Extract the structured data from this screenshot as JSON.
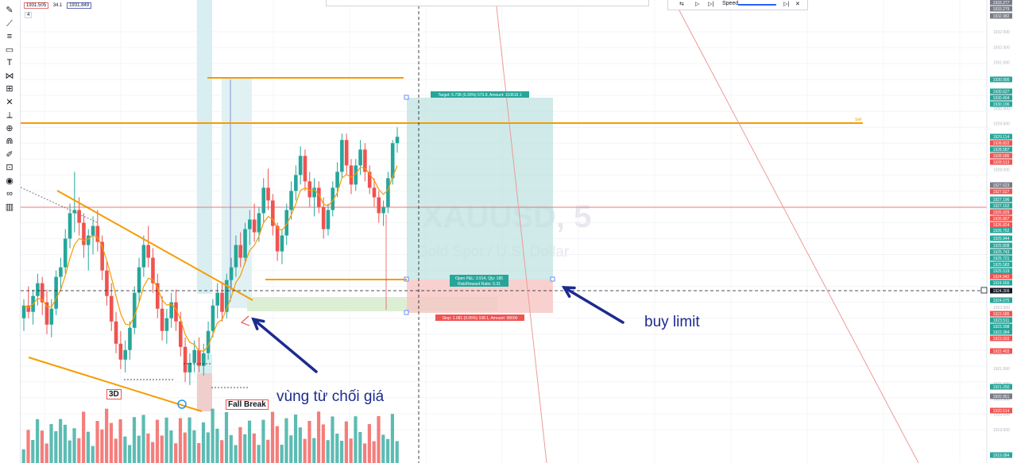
{
  "header": {
    "ohlc": [
      "1931.505",
      "34.1",
      "1931.849"
    ],
    "interval_badge": "4"
  },
  "replay": {
    "speed_label": "Speed"
  },
  "symbol": {
    "ticker": "XAUUSD, 5",
    "description": "Gold Spot / U.S. Dollar"
  },
  "position": {
    "target_label": "Target: 5.738 (0.30%) 573.8, Amount: 110616.1",
    "open_label": "Open P&L: 3.914, Qty: 185",
    "risk_label": "Risk/Reward Ratio: 5.31",
    "stop_label": "Stop: 1.081 (0.06%) 108.1, Amount: 98000"
  },
  "level_label": "Sell",
  "annotations": {
    "buy_limit": "buy limit",
    "rejection_zone": "vùng từ chối giá",
    "fall_break": "Fall Break",
    "three_d": "3D"
  },
  "colors": {
    "up": "#26a69a",
    "down": "#ef5350",
    "orange": "#f59c00",
    "arrow": "#1c2b8f",
    "target_zone": "#bfe3e0",
    "stop_zone": "#f6c5c3"
  },
  "price_axis": {
    "ticks": [
      "1932.500",
      "1932.000",
      "1931.500",
      "1931.000",
      "1930.500",
      "1930.000",
      "1929.500",
      "1929.000",
      "1928.500",
      "1928.000",
      "1927.500",
      "1927.000",
      "1926.500",
      "1926.000",
      "1925.500",
      "1925.000",
      "1924.500",
      "1924.000",
      "1923.500",
      "1923.000",
      "1922.500",
      "1922.000",
      "1921.500",
      "1921.000",
      "1920.500",
      "1920.000",
      "1919.500"
    ],
    "tags": [
      {
        "text": "1933.277",
        "color": "#787b86"
      },
      {
        "text": "1933.279",
        "color": "#787b86"
      },
      {
        "text": "1932.982",
        "color": "#787b86"
      },
      {
        "text": "1930.995",
        "color": "#26a69a"
      },
      {
        "text": "1930.627",
        "color": "#26a69a"
      },
      {
        "text": "1930.404",
        "color": "#26a69a"
      },
      {
        "text": "1930.196",
        "color": "#26a69a"
      },
      {
        "text": "1929.114",
        "color": "#26a69a"
      },
      {
        "text": "1928.822",
        "color": "#ef5350"
      },
      {
        "text": "1928.587",
        "color": "#26a69a"
      },
      {
        "text": "1928.580",
        "color": "#ef5350"
      },
      {
        "text": "1928.513",
        "color": "#ef5350"
      },
      {
        "text": "1927.623",
        "color": "#787b86"
      },
      {
        "text": "1927.527",
        "color": "#ef5350"
      },
      {
        "text": "1927.196",
        "color": "#26a69a"
      },
      {
        "text": "1927.162",
        "color": "#26a69a"
      },
      {
        "text": "1926.929",
        "color": "#ef5350"
      },
      {
        "text": "1926.867",
        "color": "#ef5350"
      },
      {
        "text": "1926.824",
        "color": "#ef5350"
      },
      {
        "text": "1926.752",
        "color": "#26a69a"
      },
      {
        "text": "1925.944",
        "color": "#26a69a"
      },
      {
        "text": "1925.808",
        "color": "#26a69a"
      },
      {
        "text": "1925.743",
        "color": "#26a69a"
      },
      {
        "text": "1925.721",
        "color": "#26a69a"
      },
      {
        "text": "1925.583",
        "color": "#26a69a"
      },
      {
        "text": "1925.519",
        "color": "#26a69a"
      },
      {
        "text": "1924.942",
        "color": "#ef5350"
      },
      {
        "text": "1924.666",
        "color": "#26a69a"
      },
      {
        "text": "1924.309",
        "color": "#131722"
      },
      {
        "text": "1924.075",
        "color": "#26a69a"
      },
      {
        "text": "1923.585",
        "color": "#ef5350"
      },
      {
        "text": "1923.511",
        "color": "#26a69a"
      },
      {
        "text": "1923.398",
        "color": "#26a69a"
      },
      {
        "text": "1923.384",
        "color": "#26a69a"
      },
      {
        "text": "1923.003",
        "color": "#ef5350"
      },
      {
        "text": "1922.403",
        "color": "#ef5350"
      },
      {
        "text": "1921.250",
        "color": "#26a69a"
      },
      {
        "text": "1920.951",
        "color": "#787b86"
      },
      {
        "text": "1920.514",
        "color": "#ef5350"
      },
      {
        "text": "1919.084",
        "color": "#26a69a"
      }
    ]
  },
  "tools": [
    "cross-icon",
    "trend-line-icon",
    "horizontal-lines-icon",
    "rectangle-icon",
    "text-icon",
    "pattern-icon",
    "fib-icon",
    "close-icon",
    "ruler-icon",
    "zoom-icon",
    "magnet-icon",
    "lock-draw-icon",
    "lock-icon",
    "eye-icon",
    "link-icon",
    "trash-icon"
  ],
  "chart_data": {
    "type": "candlestick",
    "symbol": "XAUUSD, 5",
    "ylim": [
      1919.0,
      1933.5
    ],
    "candles": [
      [
        1923.0,
        1923.6,
        1922.6,
        1923.4
      ],
      [
        1923.4,
        1924.0,
        1923.0,
        1923.2
      ],
      [
        1923.2,
        1923.9,
        1922.8,
        1923.7
      ],
      [
        1923.7,
        1924.4,
        1923.4,
        1924.1
      ],
      [
        1924.1,
        1924.3,
        1923.1,
        1923.5
      ],
      [
        1923.5,
        1923.9,
        1922.5,
        1922.8
      ],
      [
        1922.8,
        1923.6,
        1922.4,
        1923.3
      ],
      [
        1923.3,
        1924.5,
        1923.1,
        1924.3
      ],
      [
        1924.3,
        1924.9,
        1923.9,
        1924.6
      ],
      [
        1924.6,
        1925.8,
        1924.4,
        1925.5
      ],
      [
        1925.5,
        1926.6,
        1925.2,
        1926.3
      ],
      [
        1926.3,
        1927.6,
        1925.7,
        1926.4
      ],
      [
        1926.4,
        1926.8,
        1925.6,
        1926.0
      ],
      [
        1926.0,
        1926.3,
        1924.9,
        1925.3
      ],
      [
        1925.3,
        1925.8,
        1924.5,
        1925.6
      ],
      [
        1925.6,
        1926.2,
        1925.0,
        1925.9
      ],
      [
        1925.9,
        1926.4,
        1925.1,
        1925.4
      ],
      [
        1925.4,
        1925.6,
        1924.2,
        1924.5
      ],
      [
        1924.5,
        1924.8,
        1923.4,
        1923.7
      ],
      [
        1923.7,
        1924.1,
        1922.6,
        1922.9
      ],
      [
        1922.9,
        1923.2,
        1921.9,
        1922.2
      ],
      [
        1922.2,
        1922.6,
        1921.4,
        1921.7
      ],
      [
        1921.7,
        1922.3,
        1921.3,
        1922.0
      ],
      [
        1922.0,
        1922.9,
        1921.7,
        1922.7
      ],
      [
        1922.7,
        1924.0,
        1922.5,
        1923.8
      ],
      [
        1923.8,
        1924.9,
        1923.5,
        1924.6
      ],
      [
        1924.6,
        1925.6,
        1924.3,
        1925.3
      ],
      [
        1925.3,
        1925.9,
        1924.6,
        1924.9
      ],
      [
        1924.9,
        1925.2,
        1923.8,
        1924.1
      ],
      [
        1924.1,
        1924.4,
        1923.0,
        1923.3
      ],
      [
        1923.3,
        1923.7,
        1922.3,
        1922.6
      ],
      [
        1922.6,
        1923.3,
        1922.2,
        1923.0
      ],
      [
        1923.0,
        1923.8,
        1922.7,
        1923.5
      ],
      [
        1923.5,
        1923.9,
        1922.6,
        1922.9
      ],
      [
        1922.9,
        1923.2,
        1921.8,
        1922.1
      ],
      [
        1922.1,
        1922.4,
        1921.0,
        1921.3
      ],
      [
        1921.3,
        1921.9,
        1920.9,
        1921.6
      ],
      [
        1921.6,
        1922.3,
        1921.3,
        1922.0
      ],
      [
        1922.0,
        1922.4,
        1921.3,
        1921.5
      ],
      [
        1921.5,
        1922.2,
        1921.2,
        1921.9
      ],
      [
        1921.9,
        1922.9,
        1921.7,
        1922.6
      ],
      [
        1922.6,
        1923.6,
        1922.4,
        1923.4
      ],
      [
        1923.4,
        1924.1,
        1923.0,
        1923.8
      ],
      [
        1923.8,
        1924.1,
        1922.9,
        1923.2
      ],
      [
        1923.2,
        1924.4,
        1923.0,
        1924.2
      ],
      [
        1924.2,
        1924.9,
        1923.9,
        1924.6
      ],
      [
        1924.6,
        1925.6,
        1924.3,
        1925.3
      ],
      [
        1925.3,
        1925.7,
        1924.6,
        1924.9
      ],
      [
        1924.9,
        1926.0,
        1924.7,
        1925.8
      ],
      [
        1925.8,
        1926.4,
        1925.3,
        1926.1
      ],
      [
        1926.1,
        1926.6,
        1925.4,
        1925.7
      ],
      [
        1925.7,
        1926.5,
        1925.4,
        1926.3
      ],
      [
        1926.3,
        1927.4,
        1926.0,
        1927.1
      ],
      [
        1927.1,
        1927.7,
        1926.4,
        1926.7
      ],
      [
        1926.7,
        1926.9,
        1925.6,
        1925.9
      ],
      [
        1925.9,
        1926.0,
        1924.8,
        1925.1
      ],
      [
        1925.1,
        1925.8,
        1924.7,
        1925.6
      ],
      [
        1925.6,
        1926.6,
        1925.3,
        1926.4
      ],
      [
        1926.4,
        1927.3,
        1926.1,
        1927.0
      ],
      [
        1927.0,
        1927.8,
        1926.7,
        1927.5
      ],
      [
        1927.5,
        1928.4,
        1927.2,
        1928.1
      ],
      [
        1928.1,
        1928.3,
        1927.0,
        1927.3
      ],
      [
        1927.3,
        1927.6,
        1926.5,
        1926.8
      ],
      [
        1926.8,
        1927.4,
        1926.2,
        1927.1
      ],
      [
        1927.1,
        1927.3,
        1926.3,
        1926.5
      ],
      [
        1926.5,
        1926.8,
        1925.5,
        1925.8
      ],
      [
        1925.8,
        1926.6,
        1925.6,
        1926.4
      ],
      [
        1926.4,
        1927.3,
        1926.2,
        1927.1
      ],
      [
        1927.1,
        1927.9,
        1926.8,
        1927.6
      ],
      [
        1927.6,
        1928.8,
        1927.4,
        1928.6
      ],
      [
        1928.6,
        1928.8,
        1927.5,
        1927.8
      ],
      [
        1927.8,
        1928.0,
        1926.9,
        1927.2
      ],
      [
        1927.2,
        1928.0,
        1927.0,
        1927.8
      ],
      [
        1927.8,
        1928.6,
        1927.5,
        1928.3
      ],
      [
        1928.3,
        1928.5,
        1927.3,
        1927.6
      ],
      [
        1927.6,
        1927.8,
        1926.9,
        1927.1
      ],
      [
        1927.1,
        1927.4,
        1926.5,
        1926.8
      ],
      [
        1926.8,
        1927.0,
        1926.0,
        1926.3
      ],
      [
        1926.3,
        1926.7,
        1925.9,
        1926.5
      ],
      [
        1926.5,
        1927.6,
        1926.3,
        1927.4
      ],
      [
        1927.4,
        1928.6,
        1927.2,
        1928.5
      ],
      [
        1928.5,
        1929.0,
        1928.2,
        1928.7
      ]
    ],
    "ema_line_color": "#f59c00",
    "levels": [
      {
        "price": 1929.85,
        "color": "#f59c00",
        "label": "Sell"
      },
      {
        "price": 1927.1,
        "color": "#ef5350"
      },
      {
        "price": 1924.309,
        "color": "#131722"
      }
    ],
    "long_position": {
      "entry": 1924.7,
      "target": 1930.4,
      "stop": 1923.6,
      "target_label": "Target: 5.738 (0.30%) 573.8, Amount: 110616.1",
      "stop_label": "Stop: 1.081 (0.06%) 108.1, Amount: 98000",
      "open_pnl": "Open P&L: 3.914, Qty: 185",
      "risk_reward": "Risk/Reward Ratio: 5.31"
    }
  }
}
